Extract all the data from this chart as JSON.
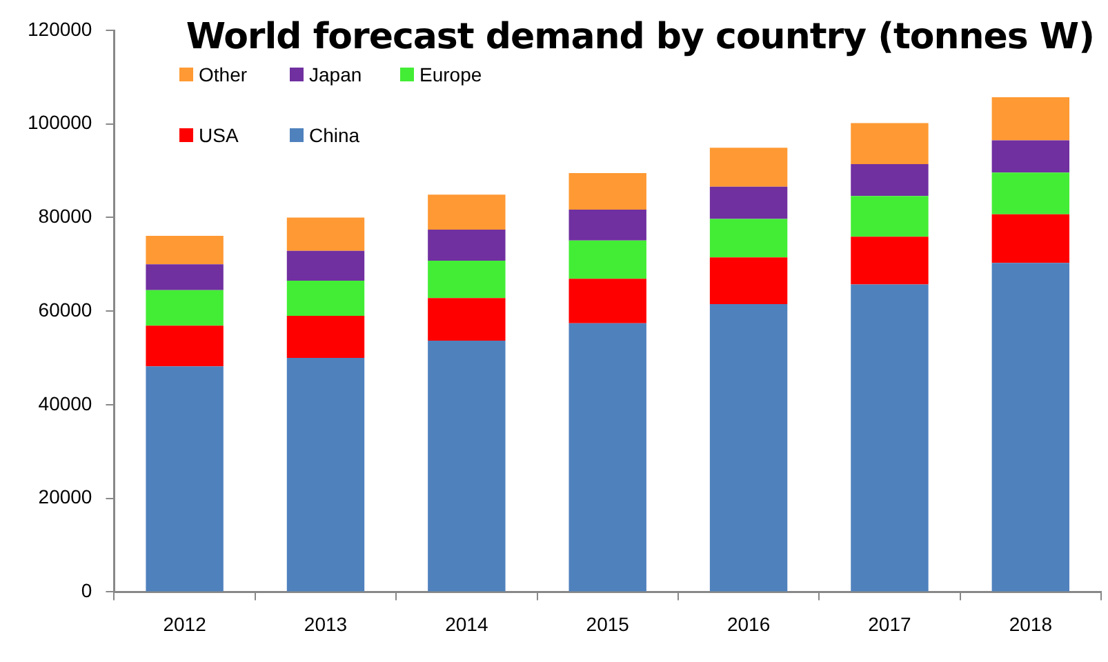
{
  "chart_data": {
    "type": "bar",
    "title": "World forecast demand by country (tonnes W)",
    "stacked": true,
    "legend": "top left",
    "grid": false,
    "categories": [
      "2012",
      "2013",
      "2014",
      "2015",
      "2016",
      "2017",
      "2018"
    ],
    "series": [
      {
        "name": "China",
        "color": "#4f81bd",
        "values": [
          48200,
          50000,
          53700,
          57400,
          61500,
          65700,
          70300
        ]
      },
      {
        "name": "USA",
        "color": "#ff0000",
        "values": [
          8700,
          9000,
          9100,
          9500,
          10000,
          10200,
          10400
        ]
      },
      {
        "name": "Europe",
        "color": "#43ed35",
        "values": [
          7600,
          7500,
          8000,
          8200,
          8200,
          8700,
          8900
        ]
      },
      {
        "name": "Japan",
        "color": "#7030a0",
        "values": [
          5500,
          6400,
          6600,
          6600,
          6900,
          6800,
          6900
        ]
      },
      {
        "name": "Other",
        "color": "#ff9933",
        "values": [
          6100,
          7100,
          7500,
          7800,
          8300,
          8800,
          9200
        ]
      }
    ],
    "ylim": [
      0,
      120000
    ],
    "yticks": [
      0,
      20000,
      40000,
      60000,
      80000,
      100000,
      120000
    ]
  }
}
